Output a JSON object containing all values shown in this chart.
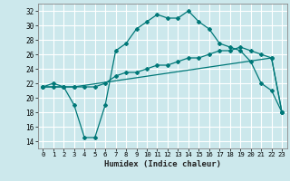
{
  "xlabel": "Humidex (Indice chaleur)",
  "bg_color": "#cce8ec",
  "grid_color": "#ffffff",
  "line_color": "#007878",
  "xlim": [
    -0.5,
    23.5
  ],
  "ylim": [
    13,
    33
  ],
  "yticks": [
    14,
    16,
    18,
    20,
    22,
    24,
    26,
    28,
    30,
    32
  ],
  "xticks": [
    0,
    1,
    2,
    3,
    4,
    5,
    6,
    7,
    8,
    9,
    10,
    11,
    12,
    13,
    14,
    15,
    16,
    17,
    18,
    19,
    20,
    21,
    22,
    23
  ],
  "line1_x": [
    0,
    1,
    2,
    3,
    4,
    5,
    6,
    7,
    8,
    9,
    10,
    11,
    12,
    13,
    14,
    15,
    16,
    17,
    18,
    19,
    20,
    21,
    22,
    23
  ],
  "line1_y": [
    21.5,
    22.0,
    21.5,
    19.0,
    14.5,
    14.5,
    19.0,
    26.5,
    27.5,
    29.5,
    30.5,
    31.5,
    31.0,
    31.0,
    32.0,
    30.5,
    29.5,
    27.5,
    27.0,
    26.5,
    25.0,
    22.0,
    21.0,
    18.0
  ],
  "line2_x": [
    0,
    2,
    3,
    22,
    23
  ],
  "line2_y": [
    21.5,
    21.5,
    21.5,
    25.5,
    18.0
  ],
  "line3_x": [
    0,
    1,
    2,
    3,
    4,
    5,
    6,
    7,
    8,
    9,
    10,
    11,
    12,
    13,
    14,
    15,
    16,
    17,
    18,
    19,
    20,
    21,
    22,
    23
  ],
  "line3_y": [
    21.5,
    21.5,
    21.5,
    21.5,
    21.5,
    21.5,
    22.0,
    23.0,
    23.5,
    23.5,
    24.0,
    24.5,
    24.5,
    25.0,
    25.5,
    25.5,
    26.0,
    26.5,
    26.5,
    27.0,
    26.5,
    26.0,
    25.5,
    18.0
  ]
}
